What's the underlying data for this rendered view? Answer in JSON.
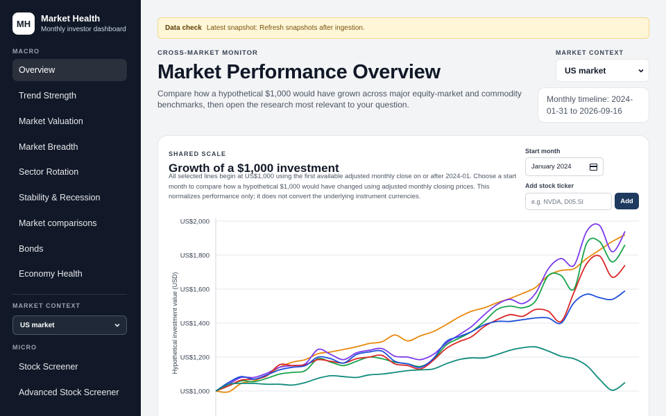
{
  "brand": {
    "logo": "MH",
    "title": "Market Health",
    "subtitle": "Monthly investor dashboard"
  },
  "sidebar": {
    "macro_heading": "MACRO",
    "macro_items": [
      {
        "label": "Overview",
        "active": true
      },
      {
        "label": "Trend Strength"
      },
      {
        "label": "Market Valuation"
      },
      {
        "label": "Market Breadth"
      },
      {
        "label": "Sector Rotation"
      },
      {
        "label": "Stability & Recession"
      },
      {
        "label": "Market comparisons"
      },
      {
        "label": "Bonds"
      },
      {
        "label": "Economy Health"
      }
    ],
    "context_heading": "MARKET CONTEXT",
    "context_value": "US market",
    "micro_heading": "MICRO",
    "micro_items": [
      {
        "label": "Stock Screener"
      },
      {
        "label": "Advanced Stock Screener"
      }
    ]
  },
  "banner": {
    "label": "Data check",
    "text": "Latest snapshot: Refresh snapshots after ingestion."
  },
  "header": {
    "kicker": "CROSS-MARKET MONITOR",
    "title": "Market Performance Overview",
    "description": "Compare how a hypothetical $1,000 would have grown across major equity-market and commodity benchmarks, then open the research most relevant to your question.",
    "context_label": "MARKET CONTEXT",
    "context_value": "US market",
    "timeline": "Monthly timeline: 2024-01-31 to 2026-09-16"
  },
  "card": {
    "kicker": "SHARED SCALE",
    "title": "Growth of a $1,000 investment",
    "description": "All selected lines begin at US$1,000 using the first available adjusted monthly close on or after 2024-01. Choose a start month to compare how a hypothetical $1,000 would have changed using adjusted monthly closing prices. This normalizes performance only; it does not convert the underlying instrument currencies.",
    "start_label": "Start month",
    "start_value": "January 2024",
    "ticker_label": "Add stock ticker",
    "ticker_placeholder": "e.g. NVDA, D05.SI",
    "add_label": "Add"
  },
  "colors": {
    "orange": "#e8890c",
    "purple": "#7c3aed",
    "green": "#16a34a",
    "red": "#dc2626",
    "blue": "#1d4ed8",
    "teal": "#0f8a7c"
  },
  "chart_data": {
    "type": "line",
    "ylabel": "Hypothetical investment value (USD)",
    "yticks": [
      "US$1,000",
      "US$1,200",
      "US$1,400",
      "US$1,600",
      "US$1,800",
      "US$2,000"
    ],
    "ylim": [
      1000,
      2000
    ],
    "x_months": 33,
    "series": [
      {
        "color": "#e8890c",
        "values": [
          1000,
          995,
          1045,
          1060,
          1095,
          1140,
          1170,
          1185,
          1220,
          1230,
          1245,
          1260,
          1280,
          1290,
          1330,
          1295,
          1325,
          1350,
          1390,
          1435,
          1470,
          1490,
          1520,
          1545,
          1575,
          1610,
          1680,
          1710,
          1720,
          1780,
          1830,
          1880,
          1920
        ]
      },
      {
        "color": "#7c3aed",
        "values": [
          1000,
          1040,
          1080,
          1080,
          1105,
          1140,
          1150,
          1160,
          1245,
          1215,
          1185,
          1225,
          1240,
          1250,
          1205,
          1200,
          1185,
          1215,
          1280,
          1330,
          1380,
          1450,
          1510,
          1540,
          1515,
          1575,
          1720,
          1780,
          1740,
          1940,
          1975,
          1820,
          1940
        ]
      },
      {
        "color": "#16a34a",
        "values": [
          1000,
          1030,
          1060,
          1055,
          1075,
          1100,
          1110,
          1120,
          1190,
          1170,
          1150,
          1175,
          1200,
          1190,
          1170,
          1160,
          1145,
          1185,
          1270,
          1310,
          1350,
          1410,
          1480,
          1500,
          1490,
          1530,
          1680,
          1680,
          1600,
          1870,
          1880,
          1760,
          1860
        ]
      },
      {
        "color": "#dc2626",
        "values": [
          1000,
          1030,
          1065,
          1070,
          1090,
          1155,
          1150,
          1155,
          1185,
          1175,
          1165,
          1190,
          1200,
          1210,
          1160,
          1150,
          1130,
          1180,
          1250,
          1290,
          1320,
          1380,
          1420,
          1450,
          1440,
          1480,
          1470,
          1410,
          1580,
          1750,
          1795,
          1670,
          1740
        ]
      },
      {
        "color": "#1d4ed8",
        "values": [
          1000,
          1050,
          1085,
          1070,
          1095,
          1125,
          1140,
          1150,
          1200,
          1190,
          1165,
          1215,
          1230,
          1235,
          1175,
          1160,
          1140,
          1190,
          1290,
          1320,
          1350,
          1390,
          1410,
          1410,
          1420,
          1430,
          1430,
          1400,
          1520,
          1570,
          1550,
          1540,
          1590
        ]
      },
      {
        "color": "#0f8a7c",
        "values": [
          1000,
          1040,
          1045,
          1045,
          1040,
          1040,
          1035,
          1050,
          1075,
          1090,
          1085,
          1080,
          1095,
          1100,
          1110,
          1120,
          1125,
          1130,
          1160,
          1185,
          1195,
          1195,
          1215,
          1240,
          1255,
          1260,
          1235,
          1205,
          1190,
          1150,
          1070,
          1005,
          1050
        ]
      }
    ]
  }
}
